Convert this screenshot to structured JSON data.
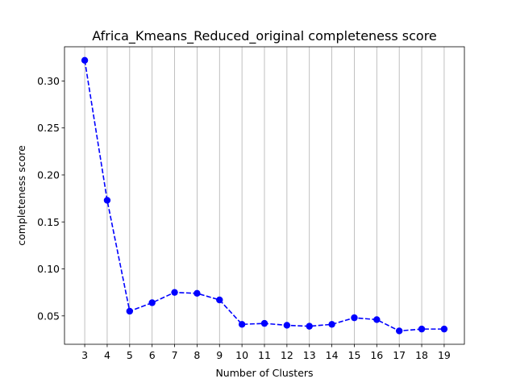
{
  "chart_data": {
    "type": "line",
    "title": "Africa_Kmeans_Reduced_original completeness score",
    "xlabel": "Number of Clusters",
    "ylabel": "completeness score",
    "x": [
      3,
      4,
      5,
      6,
      7,
      8,
      9,
      10,
      11,
      12,
      13,
      14,
      15,
      16,
      17,
      18,
      19
    ],
    "series": [
      {
        "values": [
          0.322,
          0.173,
          0.055,
          0.064,
          0.075,
          0.074,
          0.067,
          0.041,
          0.042,
          0.04,
          0.039,
          0.041,
          0.048,
          0.046,
          0.034,
          0.036,
          0.036
        ]
      }
    ],
    "xlim": [
      2.1,
      19.9
    ],
    "ylim": [
      0.0198,
      0.3364
    ],
    "yticks": [
      0.05,
      0.1,
      0.15,
      0.2,
      0.25,
      0.3
    ],
    "ytick_labels": [
      "0.05",
      "0.10",
      "0.15",
      "0.20",
      "0.25",
      "0.30"
    ],
    "grid": "x-only",
    "line_color": "#0000ff",
    "line_style": "dashed",
    "marker": "circle"
  }
}
